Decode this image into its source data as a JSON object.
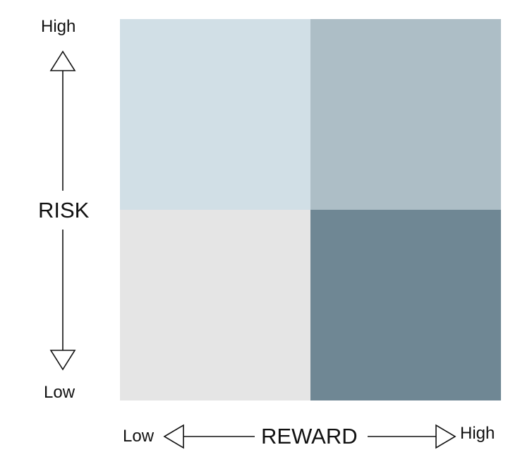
{
  "colors": {
    "high_risk_low_reward": "#d1dfe6",
    "high_risk_high_reward": "#adbec6",
    "low_risk_low_reward": "#e5e5e5",
    "low_risk_high_reward": "#6f8794",
    "arrow": "#111111"
  },
  "y_axis": {
    "title": "RISK",
    "high_label": "High",
    "low_label": "Low"
  },
  "x_axis": {
    "title": "REWARD",
    "low_label": "Low",
    "high_label": "High"
  }
}
